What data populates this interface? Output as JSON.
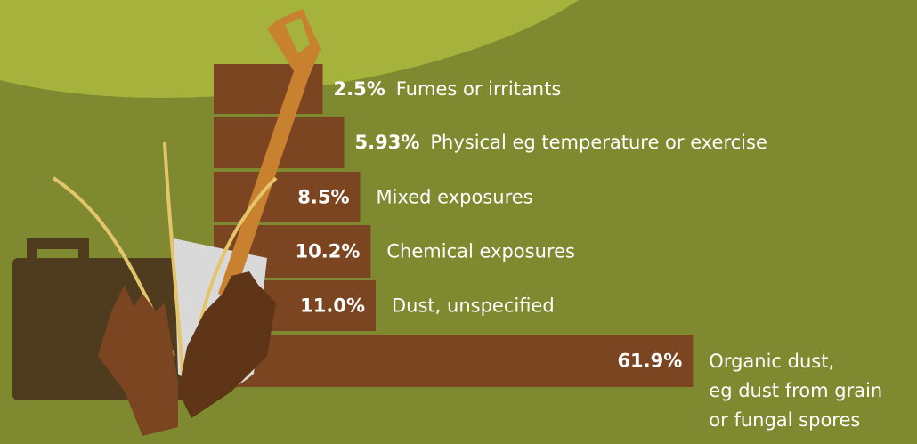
{
  "chart_data": {
    "type": "bar",
    "orientation": "horizontal",
    "categories": [
      "Fumes or irritants",
      "Physical eg temperature or exercise",
      "Mixed exposures",
      "Chemical exposures",
      "Dust, unspecified",
      "Organic dust,\neg dust from grain\nor fungal spores"
    ],
    "values": [
      2.5,
      5.93,
      8.5,
      10.2,
      11.0,
      61.9
    ],
    "value_labels": [
      "2.5%",
      "5.93%",
      "8.5%",
      "10.2%",
      "11.0%",
      "61.9%"
    ],
    "color": "#7a4520"
  }
}
